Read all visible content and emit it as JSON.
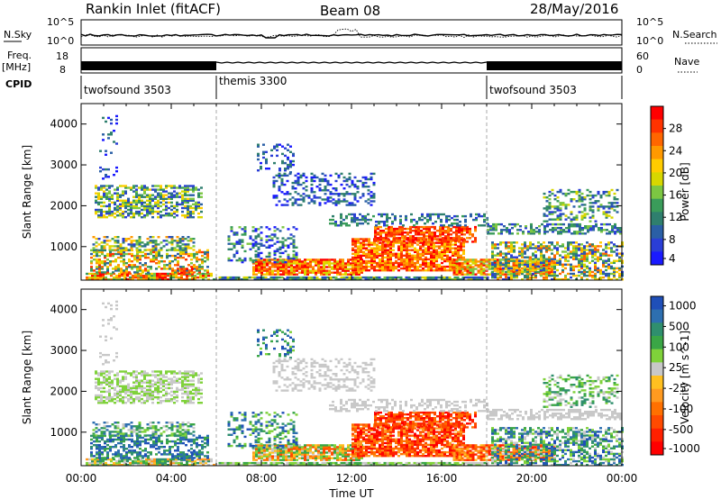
{
  "header": {
    "site": "Rankin Inlet (fitACF)",
    "beam": "Beam 08",
    "date": "28/May/2016"
  },
  "strip_labels": {
    "nsky": "N.Sky",
    "nsky_ticks": [
      "10^5",
      "10^0"
    ],
    "nsearch": "N.Search",
    "nsearch_ticks": [
      "10^5",
      "10^0"
    ],
    "freq": "Freq.",
    "freq_unit": "[MHz]",
    "freq_ticks": [
      "18",
      "8"
    ],
    "nave": "Nave",
    "nave_ticks": [
      "60",
      "0"
    ],
    "cpid": "CPID"
  },
  "cpid_segments": [
    {
      "label": "twofsound 3503",
      "start_h": 0,
      "end_h": 6
    },
    {
      "label": "themis 3300",
      "start_h": 6,
      "end_h": 18
    },
    {
      "label": "twofsound 3503",
      "start_h": 18,
      "end_h": 24
    }
  ],
  "chart_data": [
    {
      "type": "heatmap",
      "name": "power",
      "ylabel": "Slant Range [km]",
      "xlabel": "Time UT",
      "x_ticks": [
        "00:00",
        "04:00",
        "08:00",
        "12:00",
        "16:00",
        "20:00",
        "00:00"
      ],
      "y_ticks": [
        "1000",
        "2000",
        "3000",
        "4000"
      ],
      "ylim": [
        180,
        4500
      ],
      "xlim_hours": [
        0,
        24
      ],
      "colorbar_label": "Power [dB]",
      "colorbar_ticks": [
        "28",
        "24",
        "20",
        "16",
        "12",
        "8",
        "4"
      ],
      "colorbar_colors": [
        "#ff0000",
        "#ff3300",
        "#ff6600",
        "#ff9900",
        "#ffcc00",
        "#d7d700",
        "#7cc742",
        "#3a9c5a",
        "#2f7f6e",
        "#2a5fa6",
        "#2a3ed6",
        "#1a1aff"
      ]
    },
    {
      "type": "heatmap",
      "name": "velocity",
      "ylabel": "Slant Range [km]",
      "xlabel": "Time UT",
      "x_ticks": [
        "00:00",
        "04:00",
        "08:00",
        "12:00",
        "16:00",
        "20:00",
        "00:00"
      ],
      "y_ticks": [
        "1000",
        "2000",
        "3000",
        "4000"
      ],
      "ylim": [
        180,
        4500
      ],
      "xlim_hours": [
        0,
        24
      ],
      "colorbar_label": "Velocity [m s^-1]",
      "colorbar_ticks": [
        "1000",
        "500",
        "100",
        "25",
        "-25",
        "-100",
        "-500",
        "-1000"
      ],
      "colorbar_colors": [
        "#1f4fb8",
        "#2d6fb0",
        "#2f8f6e",
        "#3aa646",
        "#7fd23a",
        "#c8c8c8",
        "#ffc020",
        "#ff9a20",
        "#ff7000",
        "#ff4a00",
        "#ff2000",
        "#ff0000"
      ]
    }
  ]
}
